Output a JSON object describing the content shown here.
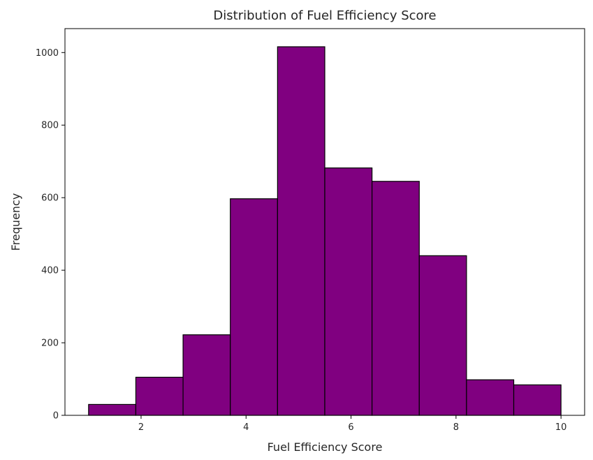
{
  "chart_data": {
    "type": "bar",
    "subtype": "histogram",
    "title": "Distribution of Fuel Efficiency Score",
    "xlabel": "Fuel Efficiency Score",
    "ylabel": "Frequency",
    "bin_edges": [
      1.0,
      1.9,
      2.8,
      3.7,
      4.6,
      5.5,
      6.4,
      7.3,
      8.2,
      9.1,
      10.0
    ],
    "values": [
      30,
      105,
      222,
      597,
      1016,
      682,
      645,
      440,
      98,
      84
    ],
    "xlim": [
      0.55,
      10.45
    ],
    "ylim": [
      0,
      1066
    ],
    "xticks": [
      2,
      4,
      6,
      8,
      10
    ],
    "yticks": [
      0,
      200,
      400,
      600,
      800,
      1000
    ],
    "grid": false,
    "legend": false,
    "colors": {
      "bar_fill": "#800080",
      "bar_edge": "#000000",
      "axes": "#000000"
    }
  }
}
